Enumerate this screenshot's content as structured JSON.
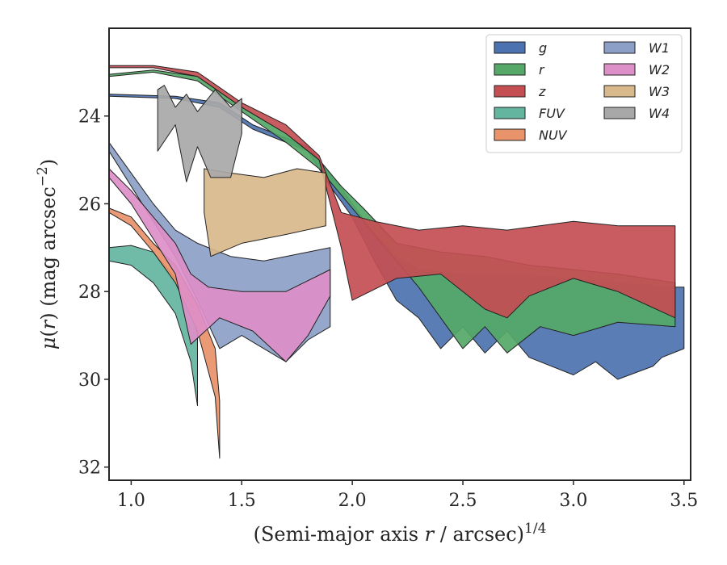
{
  "chart_data": {
    "type": "area",
    "xlabel": "(Semi-major axis r / arcsec)^1/4",
    "ylabel": "μ(r) (mag arcsec^−2)",
    "xlim": [
      0.9,
      3.53
    ],
    "ylim": [
      32.3,
      22.0
    ],
    "y_inverted": true,
    "xticks": [
      1.0,
      1.5,
      2.0,
      2.5,
      3.0,
      3.5
    ],
    "xtick_labels": [
      "1.0",
      "1.5",
      "2.0",
      "2.5",
      "3.0",
      "3.5"
    ],
    "yticks": [
      24,
      26,
      28,
      30,
      32
    ],
    "ytick_labels": [
      "24",
      "26",
      "28",
      "30",
      "32"
    ],
    "legend_position": "top-right",
    "series": [
      {
        "name": "g",
        "color": "#4c72b0",
        "upper": [
          [
            0.9,
            23.5
          ],
          [
            1.2,
            23.55
          ],
          [
            1.4,
            23.7
          ],
          [
            1.55,
            24.2
          ],
          [
            1.65,
            24.4
          ],
          [
            1.8,
            24.7
          ],
          [
            1.9,
            25.3
          ],
          [
            2.0,
            26.0
          ],
          [
            2.1,
            26.7
          ],
          [
            2.2,
            27.2
          ],
          [
            2.3,
            27.5
          ],
          [
            2.5,
            27.6
          ],
          [
            2.7,
            27.6
          ],
          [
            3.0,
            27.7
          ],
          [
            3.2,
            27.8
          ],
          [
            3.46,
            27.9
          ],
          [
            3.5,
            27.9
          ]
        ],
        "lower": [
          [
            0.9,
            23.55
          ],
          [
            1.2,
            23.6
          ],
          [
            1.4,
            23.8
          ],
          [
            1.55,
            24.3
          ],
          [
            1.65,
            24.5
          ],
          [
            1.8,
            24.8
          ],
          [
            1.9,
            25.6
          ],
          [
            2.0,
            26.3
          ],
          [
            2.1,
            27.3
          ],
          [
            2.2,
            28.2
          ],
          [
            2.3,
            28.6
          ],
          [
            2.4,
            29.3
          ],
          [
            2.5,
            28.8
          ],
          [
            2.6,
            29.4
          ],
          [
            2.7,
            28.9
          ],
          [
            2.8,
            29.5
          ],
          [
            3.0,
            29.9
          ],
          [
            3.1,
            29.6
          ],
          [
            3.2,
            30.0
          ],
          [
            3.36,
            29.7
          ],
          [
            3.4,
            29.5
          ],
          [
            3.5,
            29.3
          ]
        ]
      },
      {
        "name": "r",
        "color": "#55a868",
        "upper": [
          [
            0.9,
            23.05
          ],
          [
            1.1,
            22.95
          ],
          [
            1.3,
            23.1
          ],
          [
            1.5,
            23.8
          ],
          [
            1.7,
            24.4
          ],
          [
            1.85,
            25.0
          ],
          [
            1.95,
            25.6
          ],
          [
            2.05,
            26.1
          ],
          [
            2.2,
            26.9
          ],
          [
            2.4,
            27.1
          ],
          [
            2.6,
            27.2
          ],
          [
            2.8,
            27.4
          ],
          [
            3.0,
            27.5
          ],
          [
            3.2,
            27.6
          ],
          [
            3.46,
            27.8
          ]
        ],
        "lower": [
          [
            0.9,
            23.1
          ],
          [
            1.1,
            23.0
          ],
          [
            1.3,
            23.2
          ],
          [
            1.5,
            23.9
          ],
          [
            1.7,
            24.6
          ],
          [
            1.85,
            25.2
          ],
          [
            1.95,
            25.8
          ],
          [
            2.05,
            26.4
          ],
          [
            2.2,
            27.3
          ],
          [
            2.3,
            27.9
          ],
          [
            2.4,
            28.6
          ],
          [
            2.5,
            29.3
          ],
          [
            2.6,
            28.8
          ],
          [
            2.7,
            29.4
          ],
          [
            2.85,
            28.8
          ],
          [
            3.0,
            29.0
          ],
          [
            3.2,
            28.7
          ],
          [
            3.46,
            28.8
          ]
        ]
      },
      {
        "name": "z",
        "color": "#c44e52",
        "upper": [
          [
            0.9,
            22.85
          ],
          [
            1.1,
            22.85
          ],
          [
            1.3,
            23.0
          ],
          [
            1.5,
            23.7
          ],
          [
            1.7,
            24.2
          ],
          [
            1.85,
            24.9
          ],
          [
            1.95,
            26.2
          ],
          [
            2.1,
            26.4
          ],
          [
            2.3,
            26.6
          ],
          [
            2.5,
            26.5
          ],
          [
            2.7,
            26.6
          ],
          [
            3.0,
            26.4
          ],
          [
            3.2,
            26.5
          ],
          [
            3.46,
            26.5
          ]
        ],
        "lower": [
          [
            0.9,
            22.9
          ],
          [
            1.1,
            22.9
          ],
          [
            1.3,
            23.1
          ],
          [
            1.5,
            23.8
          ],
          [
            1.7,
            24.4
          ],
          [
            1.85,
            25.0
          ],
          [
            1.95,
            27.0
          ],
          [
            2.0,
            28.2
          ],
          [
            2.2,
            27.7
          ],
          [
            2.4,
            27.6
          ],
          [
            2.6,
            28.4
          ],
          [
            2.7,
            28.6
          ],
          [
            2.8,
            28.1
          ],
          [
            3.0,
            27.7
          ],
          [
            3.2,
            28.0
          ],
          [
            3.46,
            28.6
          ]
        ]
      },
      {
        "name": "FUV",
        "color": "#64b5a0",
        "upper": [
          [
            0.9,
            27.0
          ],
          [
            1.0,
            26.95
          ],
          [
            1.1,
            27.1
          ],
          [
            1.2,
            27.7
          ],
          [
            1.27,
            28.3
          ],
          [
            1.3,
            29.0
          ]
        ],
        "lower": [
          [
            0.9,
            27.3
          ],
          [
            1.0,
            27.4
          ],
          [
            1.1,
            27.8
          ],
          [
            1.2,
            28.5
          ],
          [
            1.27,
            29.6
          ],
          [
            1.3,
            30.6
          ]
        ]
      },
      {
        "name": "NUV",
        "color": "#e8936a",
        "upper": [
          [
            0.9,
            26.1
          ],
          [
            1.0,
            26.3
          ],
          [
            1.1,
            26.9
          ],
          [
            1.2,
            27.4
          ],
          [
            1.3,
            28.3
          ],
          [
            1.38,
            29.3
          ],
          [
            1.4,
            30.5
          ]
        ],
        "lower": [
          [
            0.9,
            26.2
          ],
          [
            1.0,
            26.5
          ],
          [
            1.1,
            27.1
          ],
          [
            1.2,
            27.8
          ],
          [
            1.3,
            28.9
          ],
          [
            1.38,
            30.4
          ],
          [
            1.4,
            31.8
          ]
        ]
      },
      {
        "name": "W1",
        "color": "#8c9fc7",
        "upper": [
          [
            0.9,
            24.6
          ],
          [
            1.0,
            25.3
          ],
          [
            1.1,
            26.0
          ],
          [
            1.2,
            26.6
          ],
          [
            1.3,
            26.9
          ],
          [
            1.45,
            27.2
          ],
          [
            1.6,
            27.3
          ],
          [
            1.8,
            27.1
          ],
          [
            1.9,
            27.0
          ]
        ],
        "lower": [
          [
            0.9,
            24.8
          ],
          [
            1.0,
            25.6
          ],
          [
            1.1,
            26.4
          ],
          [
            1.2,
            27.2
          ],
          [
            1.3,
            28.2
          ],
          [
            1.4,
            29.3
          ],
          [
            1.5,
            29.0
          ],
          [
            1.6,
            29.3
          ],
          [
            1.7,
            29.6
          ],
          [
            1.8,
            29.1
          ],
          [
            1.9,
            28.8
          ]
        ]
      },
      {
        "name": "W2",
        "color": "#dd8fc8",
        "upper": [
          [
            0.9,
            25.2
          ],
          [
            1.0,
            25.7
          ],
          [
            1.1,
            26.3
          ],
          [
            1.2,
            26.9
          ],
          [
            1.27,
            27.6
          ],
          [
            1.35,
            27.9
          ],
          [
            1.5,
            28.0
          ],
          [
            1.7,
            28.0
          ],
          [
            1.9,
            27.5
          ]
        ],
        "lower": [
          [
            0.9,
            25.4
          ],
          [
            1.0,
            26.0
          ],
          [
            1.1,
            26.8
          ],
          [
            1.2,
            27.6
          ],
          [
            1.27,
            29.2
          ],
          [
            1.4,
            28.6
          ],
          [
            1.55,
            28.9
          ],
          [
            1.7,
            29.6
          ],
          [
            1.8,
            29.0
          ],
          [
            1.9,
            28.1
          ]
        ]
      },
      {
        "name": "W3",
        "color": "#d9b98c",
        "upper": [
          [
            1.33,
            25.2
          ],
          [
            1.45,
            25.3
          ],
          [
            1.6,
            25.4
          ],
          [
            1.75,
            25.2
          ],
          [
            1.88,
            25.3
          ]
        ],
        "lower": [
          [
            1.33,
            26.2
          ],
          [
            1.36,
            27.2
          ],
          [
            1.5,
            26.9
          ],
          [
            1.7,
            26.7
          ],
          [
            1.88,
            26.5
          ]
        ]
      },
      {
        "name": "W4",
        "color": "#a8a8a8",
        "upper": [
          [
            1.12,
            23.4
          ],
          [
            1.15,
            23.3
          ],
          [
            1.2,
            23.8
          ],
          [
            1.25,
            23.5
          ],
          [
            1.3,
            23.9
          ],
          [
            1.38,
            23.4
          ],
          [
            1.45,
            23.8
          ],
          [
            1.5,
            23.6
          ]
        ],
        "lower": [
          [
            1.12,
            24.8
          ],
          [
            1.2,
            24.2
          ],
          [
            1.25,
            25.5
          ],
          [
            1.3,
            24.7
          ],
          [
            1.36,
            25.4
          ],
          [
            1.45,
            25.4
          ],
          [
            1.5,
            24.4
          ]
        ]
      }
    ]
  }
}
